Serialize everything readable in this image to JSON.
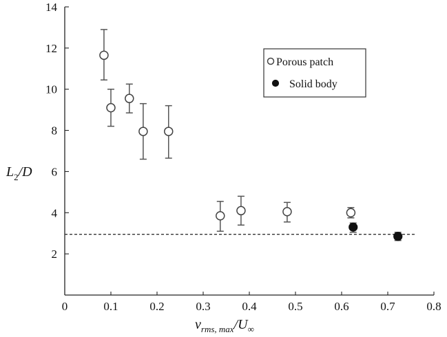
{
  "chart_data": {
    "type": "scatter",
    "xlabel": {
      "main": "v",
      "sub": "rms, max",
      "div": "/U",
      "tail": "∞"
    },
    "ylabel": {
      "main": "L",
      "sub": "2",
      "tail": "/D"
    },
    "xlim": [
      0,
      0.8
    ],
    "ylim": [
      0,
      14
    ],
    "xticks": [
      "0",
      "0.1",
      "0.2",
      "0.3",
      "0.4",
      "0.5",
      "0.6",
      "0.7",
      "0.8"
    ],
    "yticks": [
      "2",
      "4",
      "6",
      "8",
      "10",
      "12",
      "14"
    ],
    "xtick_values": [
      0,
      0.1,
      0.2,
      0.3,
      0.4,
      0.5,
      0.6,
      0.7,
      0.8
    ],
    "ytick_values": [
      2,
      4,
      6,
      8,
      10,
      12,
      14
    ],
    "reference_line": {
      "y": 2.95,
      "x_range": [
        0,
        0.76
      ],
      "style": "dashed"
    },
    "legend": {
      "placement": "top-right"
    },
    "series": [
      {
        "name": "Porous patch",
        "marker": "open-circle",
        "points": [
          {
            "x": 0.085,
            "y": 11.65,
            "err_low": 10.45,
            "err_high": 12.9
          },
          {
            "x": 0.1,
            "y": 9.1,
            "err_low": 8.2,
            "err_high": 10.0
          },
          {
            "x": 0.14,
            "y": 9.55,
            "err_low": 8.85,
            "err_high": 10.25
          },
          {
            "x": 0.17,
            "y": 7.95,
            "err_low": 6.6,
            "err_high": 9.3
          },
          {
            "x": 0.225,
            "y": 7.95,
            "err_low": 6.65,
            "err_high": 9.2
          },
          {
            "x": 0.337,
            "y": 3.85,
            "err_low": 3.1,
            "err_high": 4.55
          },
          {
            "x": 0.382,
            "y": 4.1,
            "err_low": 3.4,
            "err_high": 4.8
          },
          {
            "x": 0.482,
            "y": 4.05,
            "err_low": 3.55,
            "err_high": 4.5
          },
          {
            "x": 0.62,
            "y": 4.0,
            "err_low": 3.75,
            "err_high": 4.25
          }
        ]
      },
      {
        "name": "Solid body",
        "marker": "filled-circle",
        "points": [
          {
            "x": 0.625,
            "y": 3.3,
            "err_low": 3.05,
            "err_high": 3.5
          },
          {
            "x": 0.722,
            "y": 2.85,
            "err_low": 2.65,
            "err_high": 3.05
          }
        ]
      }
    ]
  }
}
